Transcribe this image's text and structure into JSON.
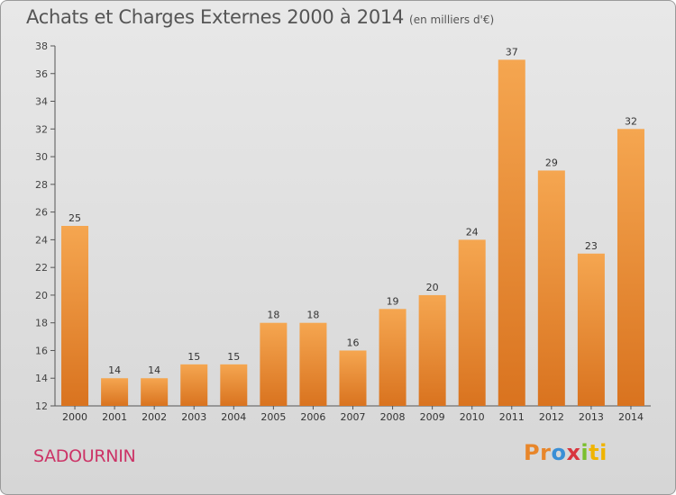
{
  "header": {
    "title": "Achats et Charges Externes 2000 à 2014",
    "subtitle": "(en milliers d'€)"
  },
  "footer": {
    "commune": "SADOURNIN",
    "brand": [
      "Pr",
      "o",
      "x",
      "i",
      "ti"
    ]
  },
  "colors": {
    "bar_light": "#f5a650",
    "bar_dark": "#d9731f",
    "axis": "#555555",
    "commune": "#cc3366"
  },
  "chart_data": {
    "type": "bar",
    "categories": [
      "2000",
      "2001",
      "2002",
      "2003",
      "2004",
      "2005",
      "2006",
      "2007",
      "2008",
      "2009",
      "2010",
      "2011",
      "2012",
      "2013",
      "2014"
    ],
    "values": [
      25,
      14,
      14,
      15,
      15,
      18,
      18,
      16,
      19,
      20,
      24,
      37,
      29,
      23,
      32
    ],
    "ylim": [
      12,
      38
    ],
    "yticks": [
      12,
      14,
      16,
      18,
      20,
      22,
      24,
      26,
      28,
      30,
      32,
      34,
      36,
      38
    ],
    "grid": false
  }
}
